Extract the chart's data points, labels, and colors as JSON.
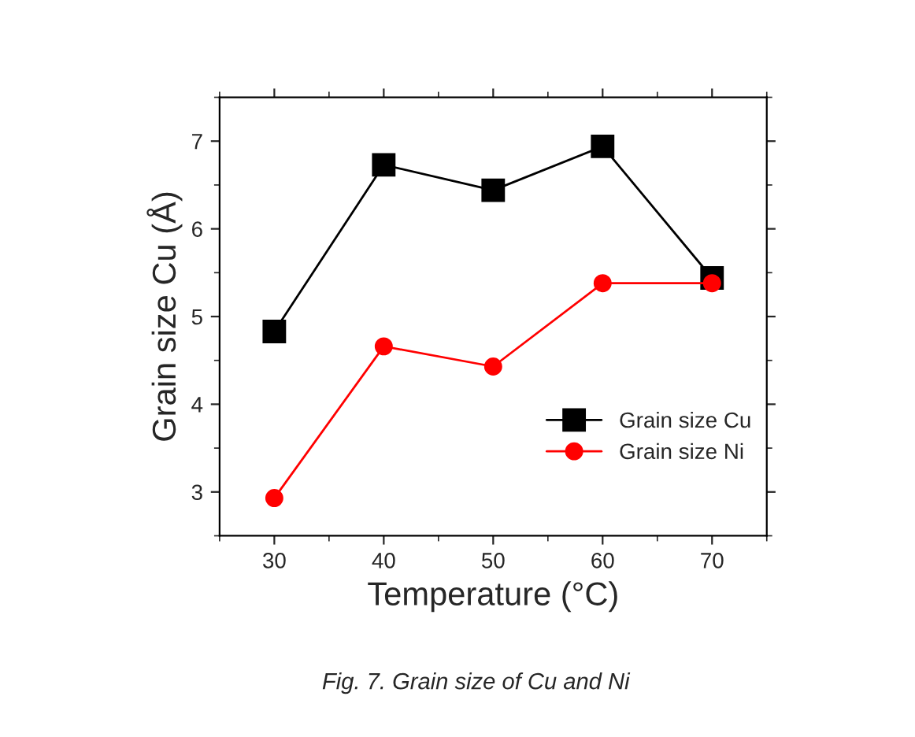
{
  "chart_data": {
    "type": "line",
    "xlabel": "Temperature (°C)",
    "ylabel": "Grain size Cu (Å)",
    "x": [
      30,
      40,
      50,
      60,
      70
    ],
    "series": [
      {
        "name": "Grain size Cu",
        "color": "#000000",
        "marker": "square",
        "values": [
          4.83,
          6.73,
          6.44,
          6.94,
          5.44
        ]
      },
      {
        "name": "Grain size Ni",
        "color": "#ff0000",
        "marker": "circle",
        "values": [
          2.93,
          4.66,
          4.43,
          5.38,
          5.38
        ]
      }
    ],
    "xlim": [
      25,
      75
    ],
    "xticks": [
      30,
      40,
      50,
      60,
      70
    ],
    "ylim": [
      2.5,
      7.5
    ],
    "yticks": [
      3,
      4,
      5,
      6,
      7
    ],
    "legend": "bottom right",
    "grid": false,
    "line_style": "solid",
    "annotations": [
      "Fig. 7. Grain size of Cu and Ni"
    ]
  }
}
